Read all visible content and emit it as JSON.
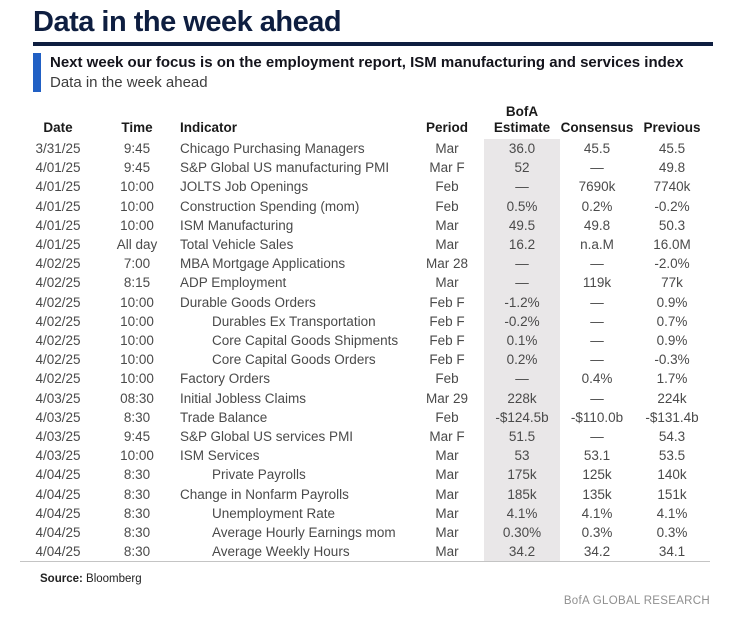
{
  "page": {
    "title": "Data in the week ahead",
    "hook_bold": "Next week our focus is on the employment report, ISM manufacturing and services index",
    "hook_sub": "Data in the week ahead",
    "footer_brand": "BofA GLOBAL RESEARCH",
    "colors": {
      "title_navy": "#0e1e40",
      "accent_blue": "#2160c4",
      "estimate_band_bg": "#e9e7e8",
      "brand_gray": "#8f8f8f"
    }
  },
  "source": {
    "label": "Source:",
    "value": "Bloomberg"
  },
  "table": {
    "headers": {
      "date": "Date",
      "time": "Time",
      "indicator": "Indicator",
      "period": "Period",
      "estimate_line1": "BofA",
      "estimate_line2": "Estimate",
      "consensus": "Consensus",
      "previous": "Previous"
    },
    "rows": [
      {
        "date": "3/31/25",
        "time": "9:45",
        "indicator": "Chicago Purchasing Managers",
        "indent": false,
        "period": "Mar",
        "estimate": "36.0",
        "consensus": "45.5",
        "previous": "45.5"
      },
      {
        "date": "4/01/25",
        "time": "9:45",
        "indicator": "S&P Global US manufacturing PMI",
        "indent": false,
        "period": "Mar F",
        "estimate": "52",
        "consensus": "—",
        "previous": "49.8"
      },
      {
        "date": "4/01/25",
        "time": "10:00",
        "indicator": "JOLTS Job Openings",
        "indent": false,
        "period": "Feb",
        "estimate": "—",
        "consensus": "7690k",
        "previous": "7740k"
      },
      {
        "date": "4/01/25",
        "time": "10:00",
        "indicator": "Construction Spending (mom)",
        "indent": false,
        "period": "Feb",
        "estimate": "0.5%",
        "consensus": "0.2%",
        "previous": "-0.2%"
      },
      {
        "date": "4/01/25",
        "time": "10:00",
        "indicator": "ISM Manufacturing",
        "indent": false,
        "period": "Mar",
        "estimate": "49.5",
        "consensus": "49.8",
        "previous": "50.3"
      },
      {
        "date": "4/01/25",
        "time": "All day",
        "indicator": "Total Vehicle Sales",
        "indent": false,
        "period": "Mar",
        "estimate": "16.2",
        "consensus": "n.a.M",
        "previous": "16.0M"
      },
      {
        "date": "4/02/25",
        "time": "7:00",
        "indicator": "MBA Mortgage Applications",
        "indent": false,
        "period": "Mar 28",
        "estimate": "—",
        "consensus": "—",
        "previous": "-2.0%"
      },
      {
        "date": "4/02/25",
        "time": "8:15",
        "indicator": "ADP Employment",
        "indent": false,
        "period": "Mar",
        "estimate": "—",
        "consensus": "119k",
        "previous": "77k"
      },
      {
        "date": "4/02/25",
        "time": "10:00",
        "indicator": "Durable Goods Orders",
        "indent": false,
        "period": "Feb F",
        "estimate": "-1.2%",
        "consensus": "—",
        "previous": "0.9%"
      },
      {
        "date": "4/02/25",
        "time": "10:00",
        "indicator": "Durables Ex Transportation",
        "indent": true,
        "period": "Feb F",
        "estimate": "-0.2%",
        "consensus": "—",
        "previous": "0.7%"
      },
      {
        "date": "4/02/25",
        "time": "10:00",
        "indicator": "Core Capital Goods Shipments",
        "indent": true,
        "period": "Feb F",
        "estimate": "0.1%",
        "consensus": "—",
        "previous": "0.9%"
      },
      {
        "date": "4/02/25",
        "time": "10:00",
        "indicator": "Core Capital Goods Orders",
        "indent": true,
        "period": "Feb F",
        "estimate": "0.2%",
        "consensus": "—",
        "previous": "-0.3%"
      },
      {
        "date": "4/02/25",
        "time": "10:00",
        "indicator": "Factory Orders",
        "indent": false,
        "period": "Feb",
        "estimate": "—",
        "consensus": "0.4%",
        "previous": "1.7%"
      },
      {
        "date": "4/03/25",
        "time": "08:30",
        "indicator": "Initial Jobless Claims",
        "indent": false,
        "period": "Mar 29",
        "estimate": "228k",
        "consensus": "—",
        "previous": "224k"
      },
      {
        "date": "4/03/25",
        "time": "8:30",
        "indicator": "Trade Balance",
        "indent": false,
        "period": "Feb",
        "estimate": "-$124.5b",
        "consensus": "-$110.0b",
        "previous": "-$131.4b"
      },
      {
        "date": "4/03/25",
        "time": "9:45",
        "indicator": "S&P Global US services PMI",
        "indent": false,
        "period": "Mar F",
        "estimate": "51.5",
        "consensus": "—",
        "previous": "54.3"
      },
      {
        "date": "4/03/25",
        "time": "10:00",
        "indicator": "ISM Services",
        "indent": false,
        "period": "Mar",
        "estimate": "53",
        "consensus": "53.1",
        "previous": "53.5"
      },
      {
        "date": "4/04/25",
        "time": "8:30",
        "indicator": "Private Payrolls",
        "indent": true,
        "period": "Mar",
        "estimate": "175k",
        "consensus": "125k",
        "previous": "140k"
      },
      {
        "date": "4/04/25",
        "time": "8:30",
        "indicator": "Change in Nonfarm Payrolls",
        "indent": false,
        "period": "Mar",
        "estimate": "185k",
        "consensus": "135k",
        "previous": "151k"
      },
      {
        "date": "4/04/25",
        "time": "8:30",
        "indicator": "Unemployment Rate",
        "indent": true,
        "period": "Mar",
        "estimate": "4.1%",
        "consensus": "4.1%",
        "previous": "4.1%"
      },
      {
        "date": "4/04/25",
        "time": "8:30",
        "indicator": "Average Hourly Earnings mom",
        "indent": true,
        "period": "Mar",
        "estimate": "0.30%",
        "consensus": "0.3%",
        "previous": "0.3%"
      },
      {
        "date": "4/04/25",
        "time": "8:30",
        "indicator": "Average Weekly Hours",
        "indent": true,
        "period": "Mar",
        "estimate": "34.2",
        "consensus": "34.2",
        "previous": "34.1"
      }
    ]
  }
}
